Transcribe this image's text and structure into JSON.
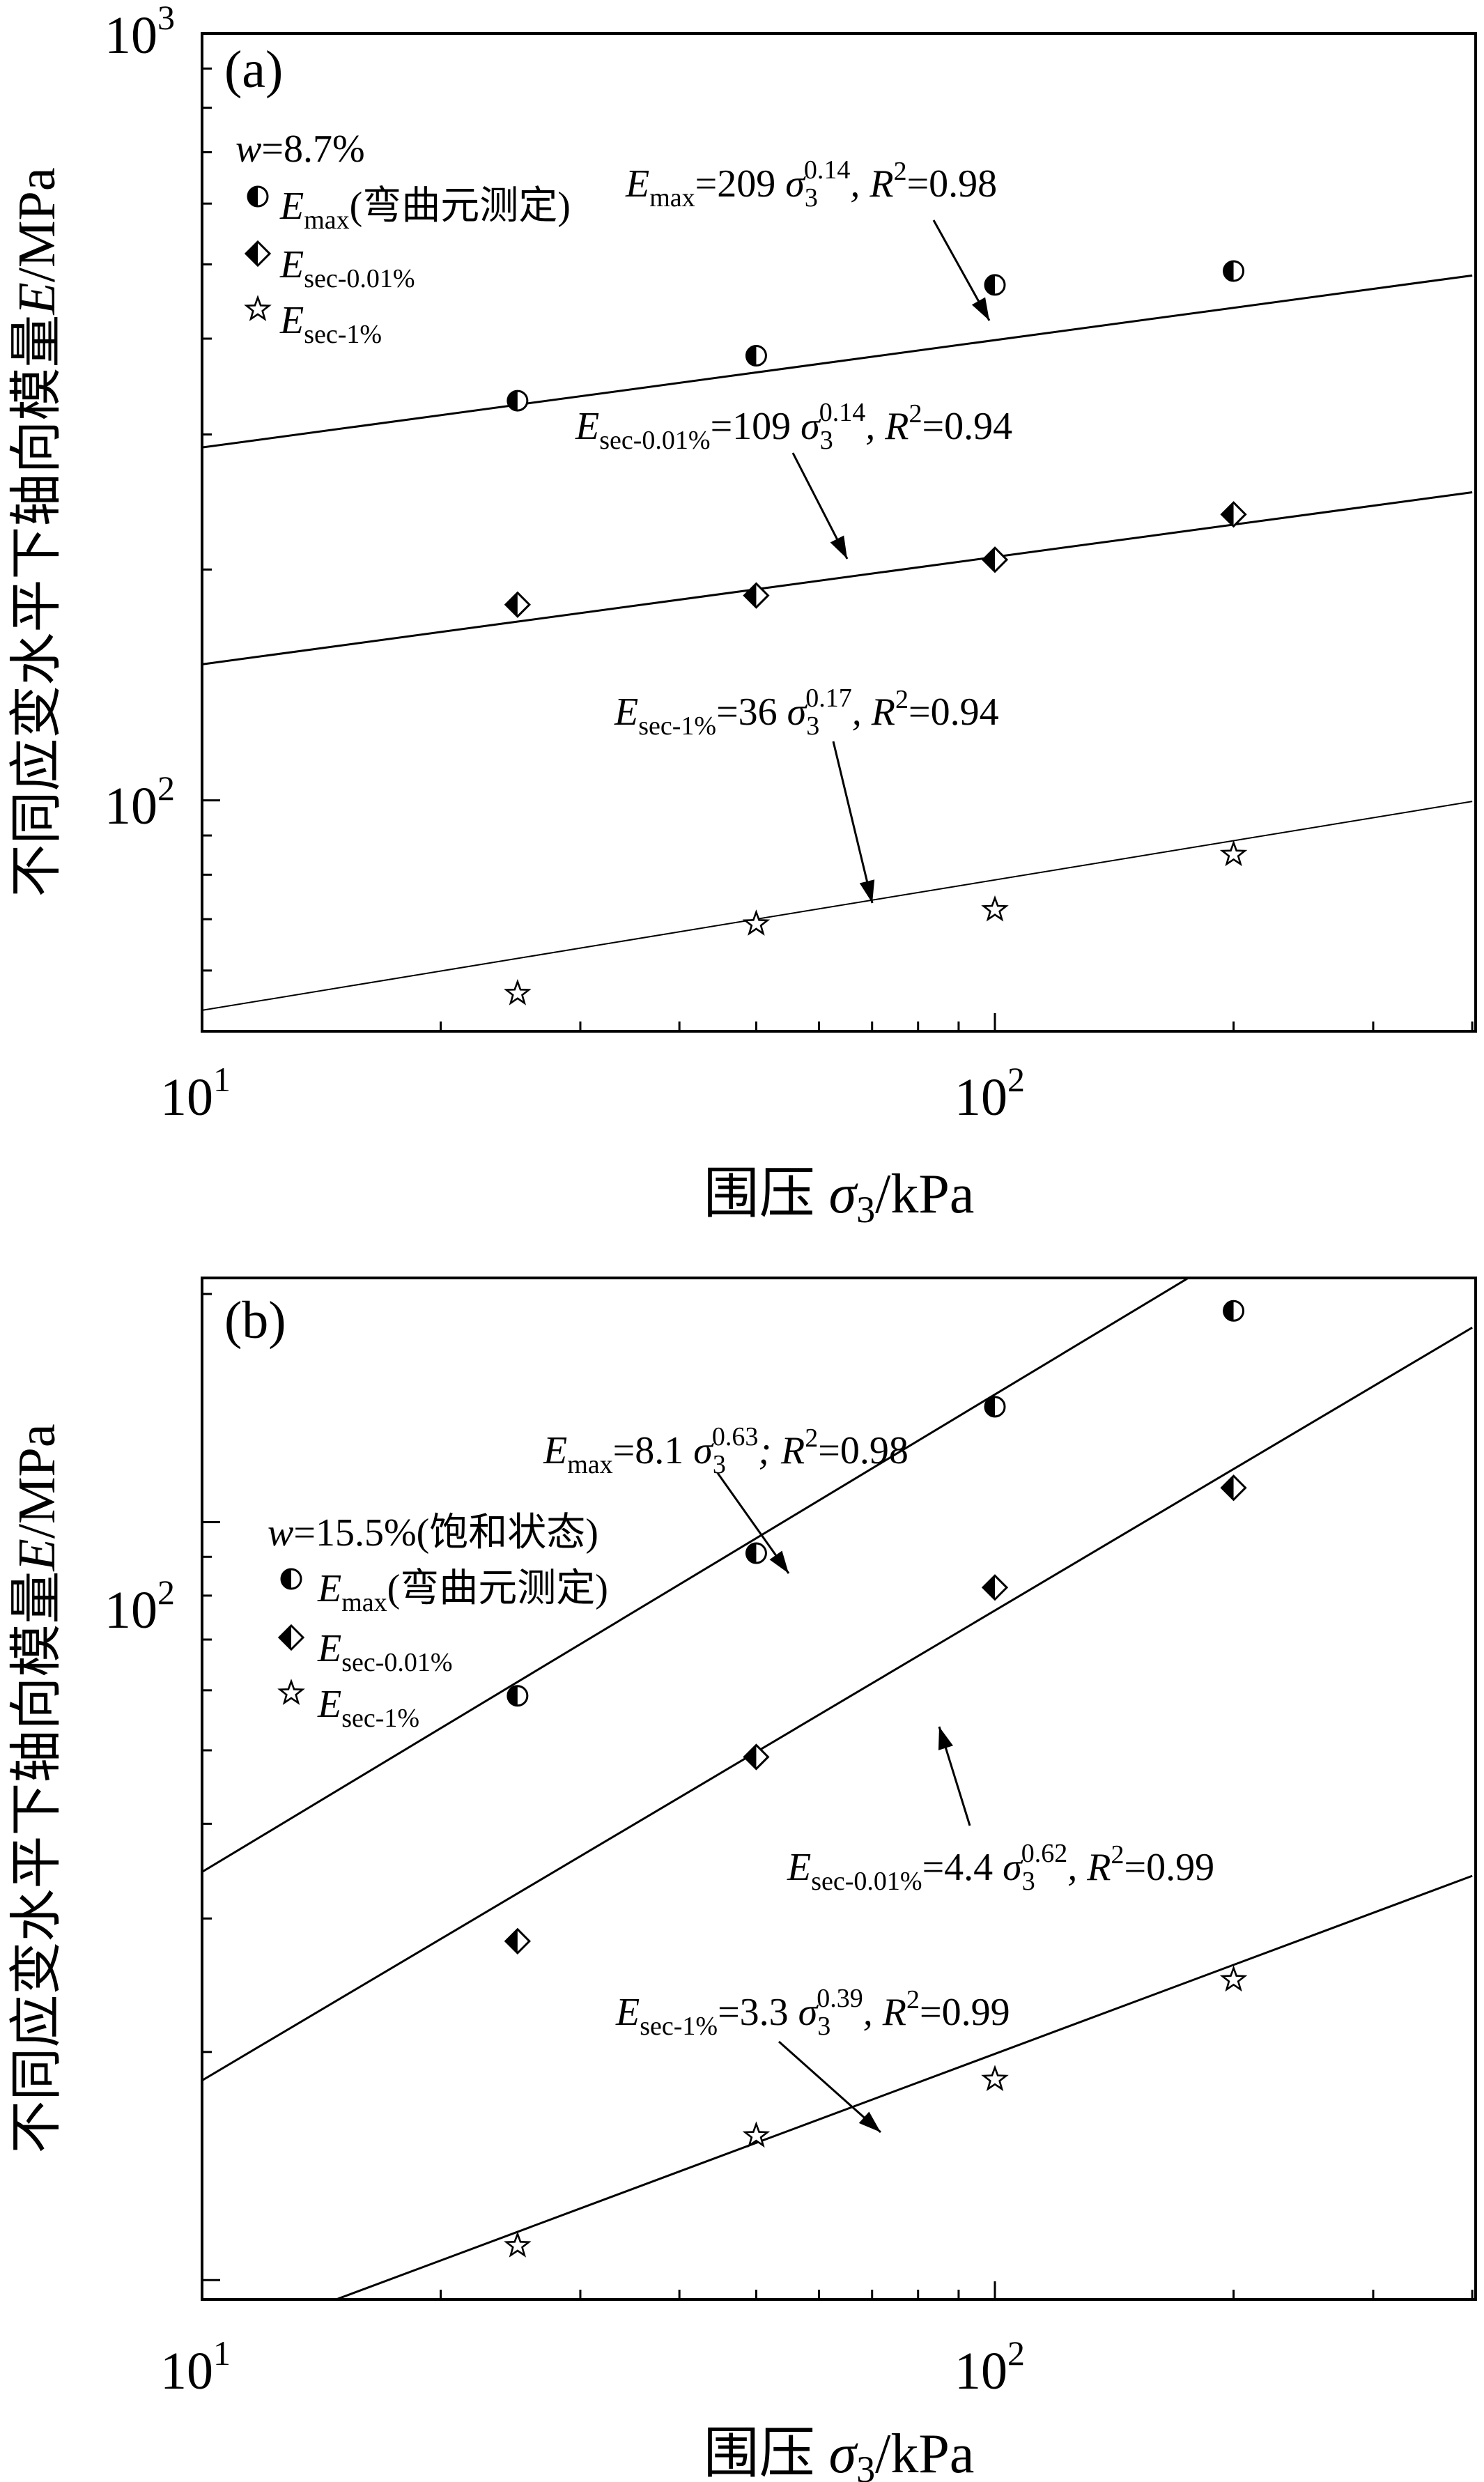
{
  "panels": [
    {
      "label": "(a)",
      "xlabel_main": "围压 ",
      "xlabel_sym": "σ",
      "xlabel_sub": "3",
      "xlabel_tail": "/kPa",
      "ylabel_main": "不同应变水平下轴向模量",
      "ylabel_sym": "E",
      "ylabel_tail": "/MPa",
      "x_ticks": [
        {
          "base": "10",
          "exp": "1"
        },
        {
          "base": "10",
          "exp": "2"
        }
      ],
      "y_ticks": [
        {
          "base": "10",
          "exp": "3"
        },
        {
          "base": "10",
          "exp": "2"
        }
      ],
      "legend": {
        "title_var": "w",
        "title_rest": "=8.7%",
        "items": [
          {
            "marker": "half-circle",
            "main": "E",
            "sub": "max",
            "tail": "(弯曲元测定)"
          },
          {
            "marker": "half-diamond",
            "main": "E",
            "sub": "sec-0.01%",
            "tail": ""
          },
          {
            "marker": "star",
            "main": "E",
            "sub": "sec-1%",
            "tail": ""
          }
        ]
      },
      "equations": [
        {
          "E": "E",
          "sub": "max",
          "eq": "=209 ",
          "sig": "σ",
          "sig_sub": "3",
          "sig_sup": "0.14",
          "r": ", R",
          "r_sup": "2",
          "r_val": "=0.98"
        },
        {
          "E": "E",
          "sub": "sec-0.01%",
          "eq": "=109 ",
          "sig": "σ",
          "sig_sub": "3",
          "sig_sup": "0.14",
          "r": ", R",
          "r_sup": "2",
          "r_val": "=0.94"
        },
        {
          "E": "E",
          "sub": "sec-1%",
          "eq": "=36 ",
          "sig": "σ",
          "sig_sub": "3",
          "sig_sup": "0.17",
          "r": ", R",
          "r_sup": "2",
          "r_val": "=0.94"
        }
      ]
    },
    {
      "label": "(b)",
      "xlabel_main": "围压 ",
      "xlabel_sym": "σ",
      "xlabel_sub": "3",
      "xlabel_tail": "/kPa",
      "ylabel_main": "不同应变水平下轴向模量",
      "ylabel_sym": "E",
      "ylabel_tail": "/MPa",
      "x_ticks": [
        {
          "base": "10",
          "exp": "1"
        },
        {
          "base": "10",
          "exp": "2"
        }
      ],
      "y_ticks": [
        {
          "base": "10",
          "exp": "2"
        }
      ],
      "legend": {
        "title_var": "w",
        "title_rest": "=15.5%(饱和状态)",
        "items": [
          {
            "marker": "half-circle",
            "main": "E",
            "sub": "max",
            "tail": "(弯曲元测定)"
          },
          {
            "marker": "half-diamond",
            "main": "E",
            "sub": "sec-0.01%",
            "tail": ""
          },
          {
            "marker": "star",
            "main": "E",
            "sub": "sec-1%",
            "tail": ""
          }
        ]
      },
      "equations": [
        {
          "E": "E",
          "sub": "max",
          "eq": "=8.1 ",
          "sig": "σ",
          "sig_sub": "3",
          "sig_sup": "0.63",
          "r": "; R",
          "r_sup": "2",
          "r_val": "=0.98"
        },
        {
          "E": "E",
          "sub": "sec-0.01%",
          "eq": "=4.4 ",
          "sig": "σ",
          "sig_sub": "3",
          "sig_sup": "0.62",
          "r": ", R",
          "r_sup": "2",
          "r_val": "=0.99"
        },
        {
          "E": "E",
          "sub": "sec-1%",
          "eq": "=3.3 ",
          "sig": "σ",
          "sig_sub": "3",
          "sig_sup": "0.39",
          "r": ", R",
          "r_sup": "2",
          "r_val": "=0.99"
        }
      ]
    }
  ],
  "chart_data": [
    {
      "type": "scatter",
      "title": "(a)",
      "xlabel": "围压 σ3/kPa",
      "ylabel": "不同应变水平下轴向模量E/MPa",
      "xscale": "log",
      "yscale": "log",
      "xlim": [
        10,
        400
      ],
      "ylim": [
        50,
        1000
      ],
      "legend_position": "top-left",
      "grid": false,
      "series": [
        {
          "name": "Emax(弯曲元测定)",
          "marker": "half-circle",
          "x": [
            25,
            50,
            100,
            200
          ],
          "y": [
            332,
            380,
            470,
            490
          ],
          "fit": {
            "a": 209,
            "b": 0.14,
            "r2": 0.98
          }
        },
        {
          "name": "Esec-0.01%",
          "marker": "half-diamond",
          "x": [
            25,
            50,
            100,
            200
          ],
          "y": [
            180,
            185,
            206,
            236
          ],
          "fit": {
            "a": 109,
            "b": 0.14,
            "r2": 0.94
          }
        },
        {
          "name": "Esec-1%",
          "marker": "star",
          "x": [
            25,
            50,
            100,
            200
          ],
          "y": [
            56,
            69,
            72,
            85
          ],
          "fit": {
            "a": 36,
            "b": 0.17,
            "r2": 0.94
          }
        }
      ]
    },
    {
      "type": "scatter",
      "title": "(b)",
      "xlabel": "围压 σ3/kPa",
      "ylabel": "不同应变水平下轴向模量E/MPa",
      "xscale": "log",
      "yscale": "log",
      "xlim": [
        10,
        400
      ],
      "ylim": [
        9.43,
        210
      ],
      "legend_position": "top-left",
      "grid": false,
      "series": [
        {
          "name": "Emax(弯曲元测定)",
          "marker": "half-circle",
          "x": [
            25,
            50,
            100,
            200
          ],
          "y": [
            59,
            91,
            142,
            190
          ],
          "fit": {
            "a": 8.1,
            "b": 0.63,
            "r2": 0.98
          }
        },
        {
          "name": "Esec-0.01%",
          "marker": "half-diamond",
          "x": [
            25,
            50,
            100,
            200
          ],
          "y": [
            28,
            49,
            82,
            111
          ],
          "fit": {
            "a": 4.4,
            "b": 0.62,
            "r2": 0.99
          }
        },
        {
          "name": "Esec-1%",
          "marker": "star",
          "x": [
            25,
            50,
            100,
            200
          ],
          "y": [
            11.1,
            15.5,
            18.4,
            24.9
          ],
          "fit": {
            "a": 3.3,
            "b": 0.39,
            "r2": 0.99
          }
        }
      ]
    }
  ]
}
